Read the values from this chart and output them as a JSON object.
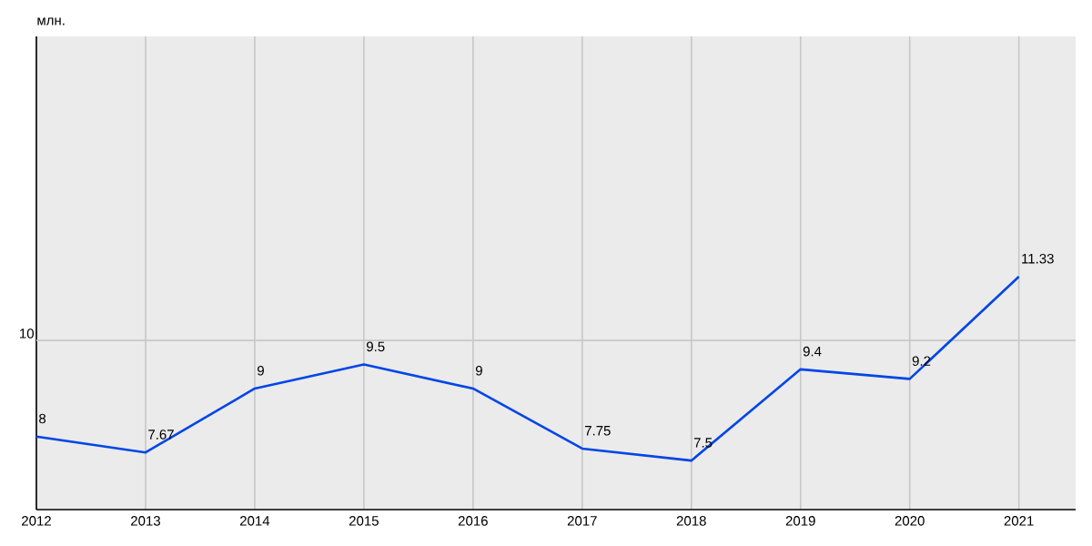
{
  "chart_data": {
    "type": "line",
    "ylabel": "млн.",
    "x": [
      2012,
      2013,
      2014,
      2015,
      2016,
      2017,
      2018,
      2019,
      2020,
      2021
    ],
    "series": [
      {
        "color": "#0046e6",
        "values": [
          8,
          7.67,
          9,
          9.5,
          9,
          7.75,
          7.5,
          9.4,
          9.2,
          11.33
        ]
      }
    ],
    "xlim": [
      2012,
      2021.52
    ],
    "xticks": [
      2012,
      2013,
      2014,
      2015,
      2016,
      2017,
      2018,
      2019,
      2020,
      2021
    ],
    "ylim": [
      6.48,
      16.33
    ],
    "ref_lines": [
      {
        "axis": "y",
        "value": 10,
        "label": "10",
        "color": "#c8c8c8"
      }
    ],
    "grid": "x",
    "data_labels": true,
    "marker": "none",
    "line_style": "solid"
  }
}
